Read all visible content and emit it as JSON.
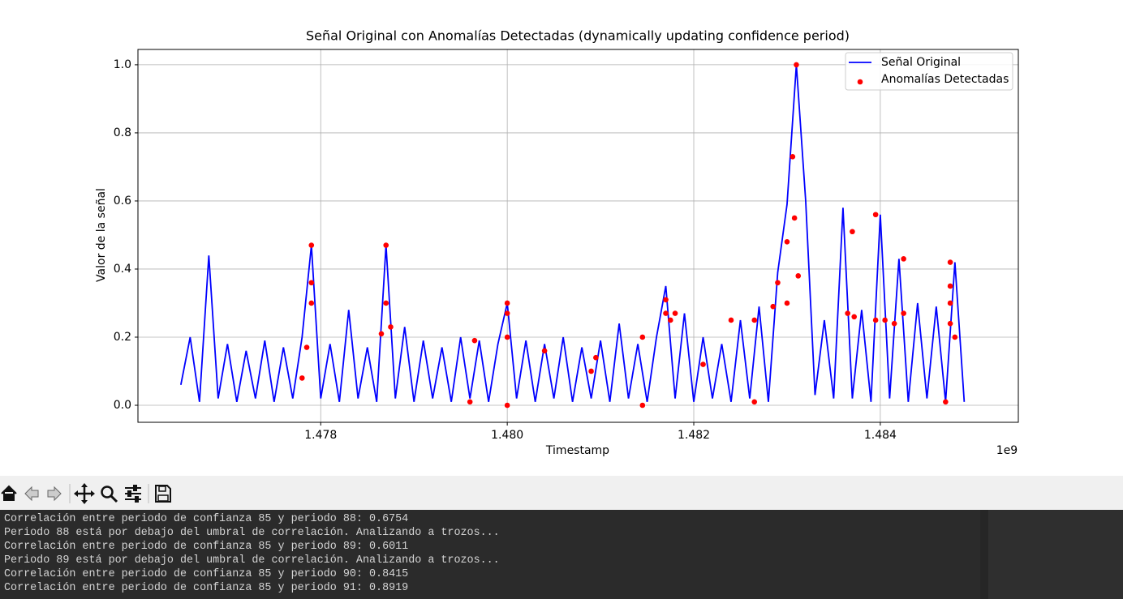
{
  "chart_data": {
    "type": "line",
    "title": "Señal Original con Anomalías Detectadas (dynamically updating confidence period)",
    "xlabel": "Timestamp",
    "ylabel": "Valor de la señal",
    "x_offset_label": "1e9",
    "xlim": [
      1476040000,
      1485480000
    ],
    "ylim": [
      -0.05,
      1.045
    ],
    "xticks": [
      {
        "value": 1478000000,
        "label": "1.478"
      },
      {
        "value": 1480000000,
        "label": "1.480"
      },
      {
        "value": 1482000000,
        "label": "1.482"
      },
      {
        "value": 1484000000,
        "label": "1.484"
      }
    ],
    "yticks": [
      {
        "value": 0,
        "label": "0.0"
      },
      {
        "value": 0.2,
        "label": "0.2"
      },
      {
        "value": 0.4,
        "label": "0.4"
      },
      {
        "value": 0.6,
        "label": "0.6"
      },
      {
        "value": 0.8,
        "label": "0.8"
      },
      {
        "value": 1,
        "label": "1.0"
      }
    ],
    "grid": true,
    "legend": "upper right",
    "series": [
      {
        "name": "Señal Original",
        "color": "#0000ff",
        "type": "line",
        "x": [
          1476500000,
          1476600000,
          1476700000,
          1476800000,
          1476900000,
          1477000000,
          1477100000,
          1477200000,
          1477300000,
          1477400000,
          1477500000,
          1477600000,
          1477700000,
          1477800000,
          1477900000,
          1478000000,
          1478100000,
          1478200000,
          1478300000,
          1478400000,
          1478500000,
          1478600000,
          1478700000,
          1478800000,
          1478900000,
          1479000000,
          1479100000,
          1479200000,
          1479300000,
          1479400000,
          1479500000,
          1479600000,
          1479700000,
          1479800000,
          1479900000,
          1480000000,
          1480100000,
          1480200000,
          1480300000,
          1480400000,
          1480500000,
          1480600000,
          1480700000,
          1480800000,
          1480900000,
          1481000000,
          1481100000,
          1481200000,
          1481300000,
          1481400000,
          1481500000,
          1481600000,
          1481700000,
          1481800000,
          1481900000,
          1482000000,
          1482100000,
          1482200000,
          1482300000,
          1482400000,
          1482500000,
          1482600000,
          1482700000,
          1482800000,
          1482900000,
          1483000000,
          1483100000,
          1483200000,
          1483300000,
          1483400000,
          1483500000,
          1483600000,
          1483700000,
          1483800000,
          1483900000,
          1484000000,
          1484100000,
          1484200000,
          1484300000,
          1484400000,
          1484500000,
          1484600000,
          1484700000,
          1484800000,
          1484900000
        ],
        "values": [
          0.06,
          0.2,
          0.01,
          0.44,
          0.02,
          0.18,
          0.01,
          0.16,
          0.02,
          0.19,
          0.01,
          0.17,
          0.02,
          0.2,
          0.47,
          0.02,
          0.18,
          0.01,
          0.28,
          0.02,
          0.17,
          0.01,
          0.47,
          0.02,
          0.23,
          0.01,
          0.19,
          0.02,
          0.17,
          0.01,
          0.2,
          0.02,
          0.19,
          0.01,
          0.18,
          0.3,
          0.02,
          0.19,
          0.01,
          0.18,
          0.02,
          0.2,
          0.01,
          0.17,
          0.02,
          0.19,
          0.01,
          0.24,
          0.02,
          0.18,
          0.01,
          0.2,
          0.35,
          0.02,
          0.27,
          0.01,
          0.2,
          0.02,
          0.18,
          0.01,
          0.25,
          0.02,
          0.29,
          0.01,
          0.39,
          0.59,
          1.0,
          0.6,
          0.03,
          0.25,
          0.02,
          0.58,
          0.02,
          0.28,
          0.01,
          0.56,
          0.02,
          0.43,
          0.01,
          0.3,
          0.02,
          0.29,
          0.01,
          0.42,
          0.01
        ]
      },
      {
        "name": "Anomalías Detectadas",
        "color": "#ff0000",
        "type": "scatter",
        "x": [
          1477900000,
          1477900000,
          1477900000,
          1477850000,
          1477800000,
          1478700000,
          1478700000,
          1478750000,
          1478650000,
          1479650000,
          1479600000,
          1480000000,
          1480000000,
          1480000000,
          1480000000,
          1480400000,
          1480950000,
          1480900000,
          1481450000,
          1481450000,
          1481700000,
          1481700000,
          1481750000,
          1481800000,
          1482100000,
          1482400000,
          1482650000,
          1482650000,
          1482850000,
          1482900000,
          1483000000,
          1483060000,
          1483080000,
          1483100000,
          1483120000,
          1483000000,
          1483650000,
          1483700000,
          1483720000,
          1483950000,
          1483950000,
          1484050000,
          1484150000,
          1484250000,
          1484250000,
          1484750000,
          1484750000,
          1484750000,
          1484750000,
          1484800000,
          1484700000
        ],
        "values": [
          0.47,
          0.36,
          0.3,
          0.17,
          0.08,
          0.47,
          0.3,
          0.23,
          0.21,
          0.19,
          0.01,
          0.3,
          0.27,
          0.2,
          0.0,
          0.16,
          0.14,
          0.1,
          0.2,
          0.0,
          0.31,
          0.27,
          0.25,
          0.27,
          0.12,
          0.25,
          0.25,
          0.01,
          0.29,
          0.36,
          0.48,
          0.73,
          0.55,
          1.0,
          0.38,
          0.3,
          0.27,
          0.51,
          0.26,
          0.56,
          0.25,
          0.25,
          0.24,
          0.43,
          0.27,
          0.42,
          0.35,
          0.3,
          0.24,
          0.2,
          0.01
        ]
      }
    ]
  },
  "console": {
    "lines": [
      "Correlación entre periodo de confianza 85 y periodo 88: 0.6754",
      "Periodo 88 está por debajo del umbral de correlación. Analizando a trozos...",
      "Correlación entre periodo de confianza 85 y periodo 89: 0.6011",
      "Periodo 89 está por debajo del umbral de correlación. Analizando a trozos...",
      "Correlación entre periodo de confianza 85 y periodo 90: 0.8415",
      "Correlación entre periodo de confianza 85 y periodo 91: 0.8919"
    ]
  }
}
